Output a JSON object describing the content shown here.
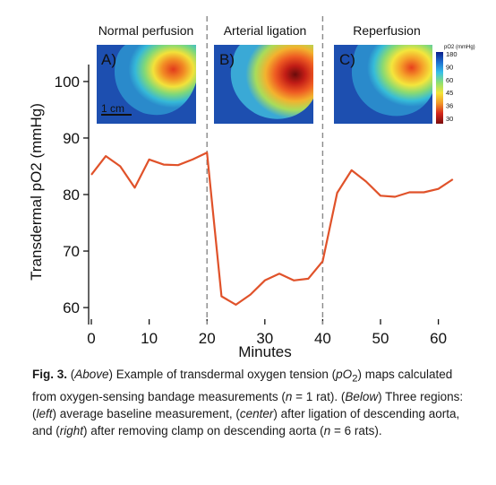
{
  "chart_data": {
    "type": "line",
    "xlabel": "Minutes",
    "ylabel": "Transdermal pO2 (mmHg)",
    "xlim": [
      0,
      63
    ],
    "ylim": [
      57,
      103
    ],
    "xticks": [
      0,
      10,
      20,
      30,
      40,
      50,
      60
    ],
    "yticks": [
      60,
      70,
      80,
      90,
      100
    ],
    "grid": false,
    "line_color": "#e0522a",
    "divider_color": "#8a8a8a",
    "dividers_x": [
      20,
      40
    ],
    "series": [
      {
        "x": [
          0,
          2.5,
          5,
          7.5,
          10,
          12.5,
          15,
          17.5,
          20,
          22.5,
          25,
          27.5,
          30,
          32.5,
          35,
          37.5,
          40,
          42.5,
          45,
          47.5,
          50,
          52.5,
          55,
          57.5,
          60,
          62.5
        ],
        "y": [
          83.5,
          86.8,
          85.0,
          81.2,
          86.2,
          85.3,
          85.2,
          86.2,
          87.4,
          62.0,
          60.5,
          62.3,
          64.8,
          66.0,
          64.8,
          65.1,
          68.2,
          80.3,
          84.3,
          82.3,
          79.8,
          79.6,
          80.4,
          80.4,
          81.0,
          82.7
        ]
      }
    ],
    "panels": [
      {
        "title": "Normal perfusion",
        "letter": "A)",
        "scale_label": "1 cm"
      },
      {
        "title": "Arterial ligation",
        "letter": "B)"
      },
      {
        "title": "Reperfusion",
        "letter": "C)"
      }
    ],
    "colorbar": {
      "title": "pO2 (mmHg)",
      "ticks": [
        "180",
        "90",
        "60",
        "45",
        "36",
        "30"
      ],
      "colors": [
        "#0b1f8c",
        "#1e6fd0",
        "#38c0e8",
        "#8ee070",
        "#f5e53a",
        "#f29a2a",
        "#d4261c",
        "#7a0d0d"
      ]
    }
  },
  "caption": {
    "label": "Fig. 3.",
    "part1": " (",
    "above": "Above",
    "part2": ") Example of transdermal oxygen tension (",
    "po2": "pO",
    "po2_sub": "2",
    "part3": ") maps calculated from oxygen-sensing bandage measurements (",
    "n1": "n",
    "part4": " = 1 rat). (",
    "below": "Below",
    "part5": ") Three regions: (",
    "left": "left",
    "part6": ") average baseline measurement, (",
    "center": "center",
    "part7": ") after ligation of descending aorta, and (",
    "right": "right",
    "part8": ") after removing clamp on descending aorta (",
    "n2": "n",
    "part9": " = 6 rats)."
  }
}
